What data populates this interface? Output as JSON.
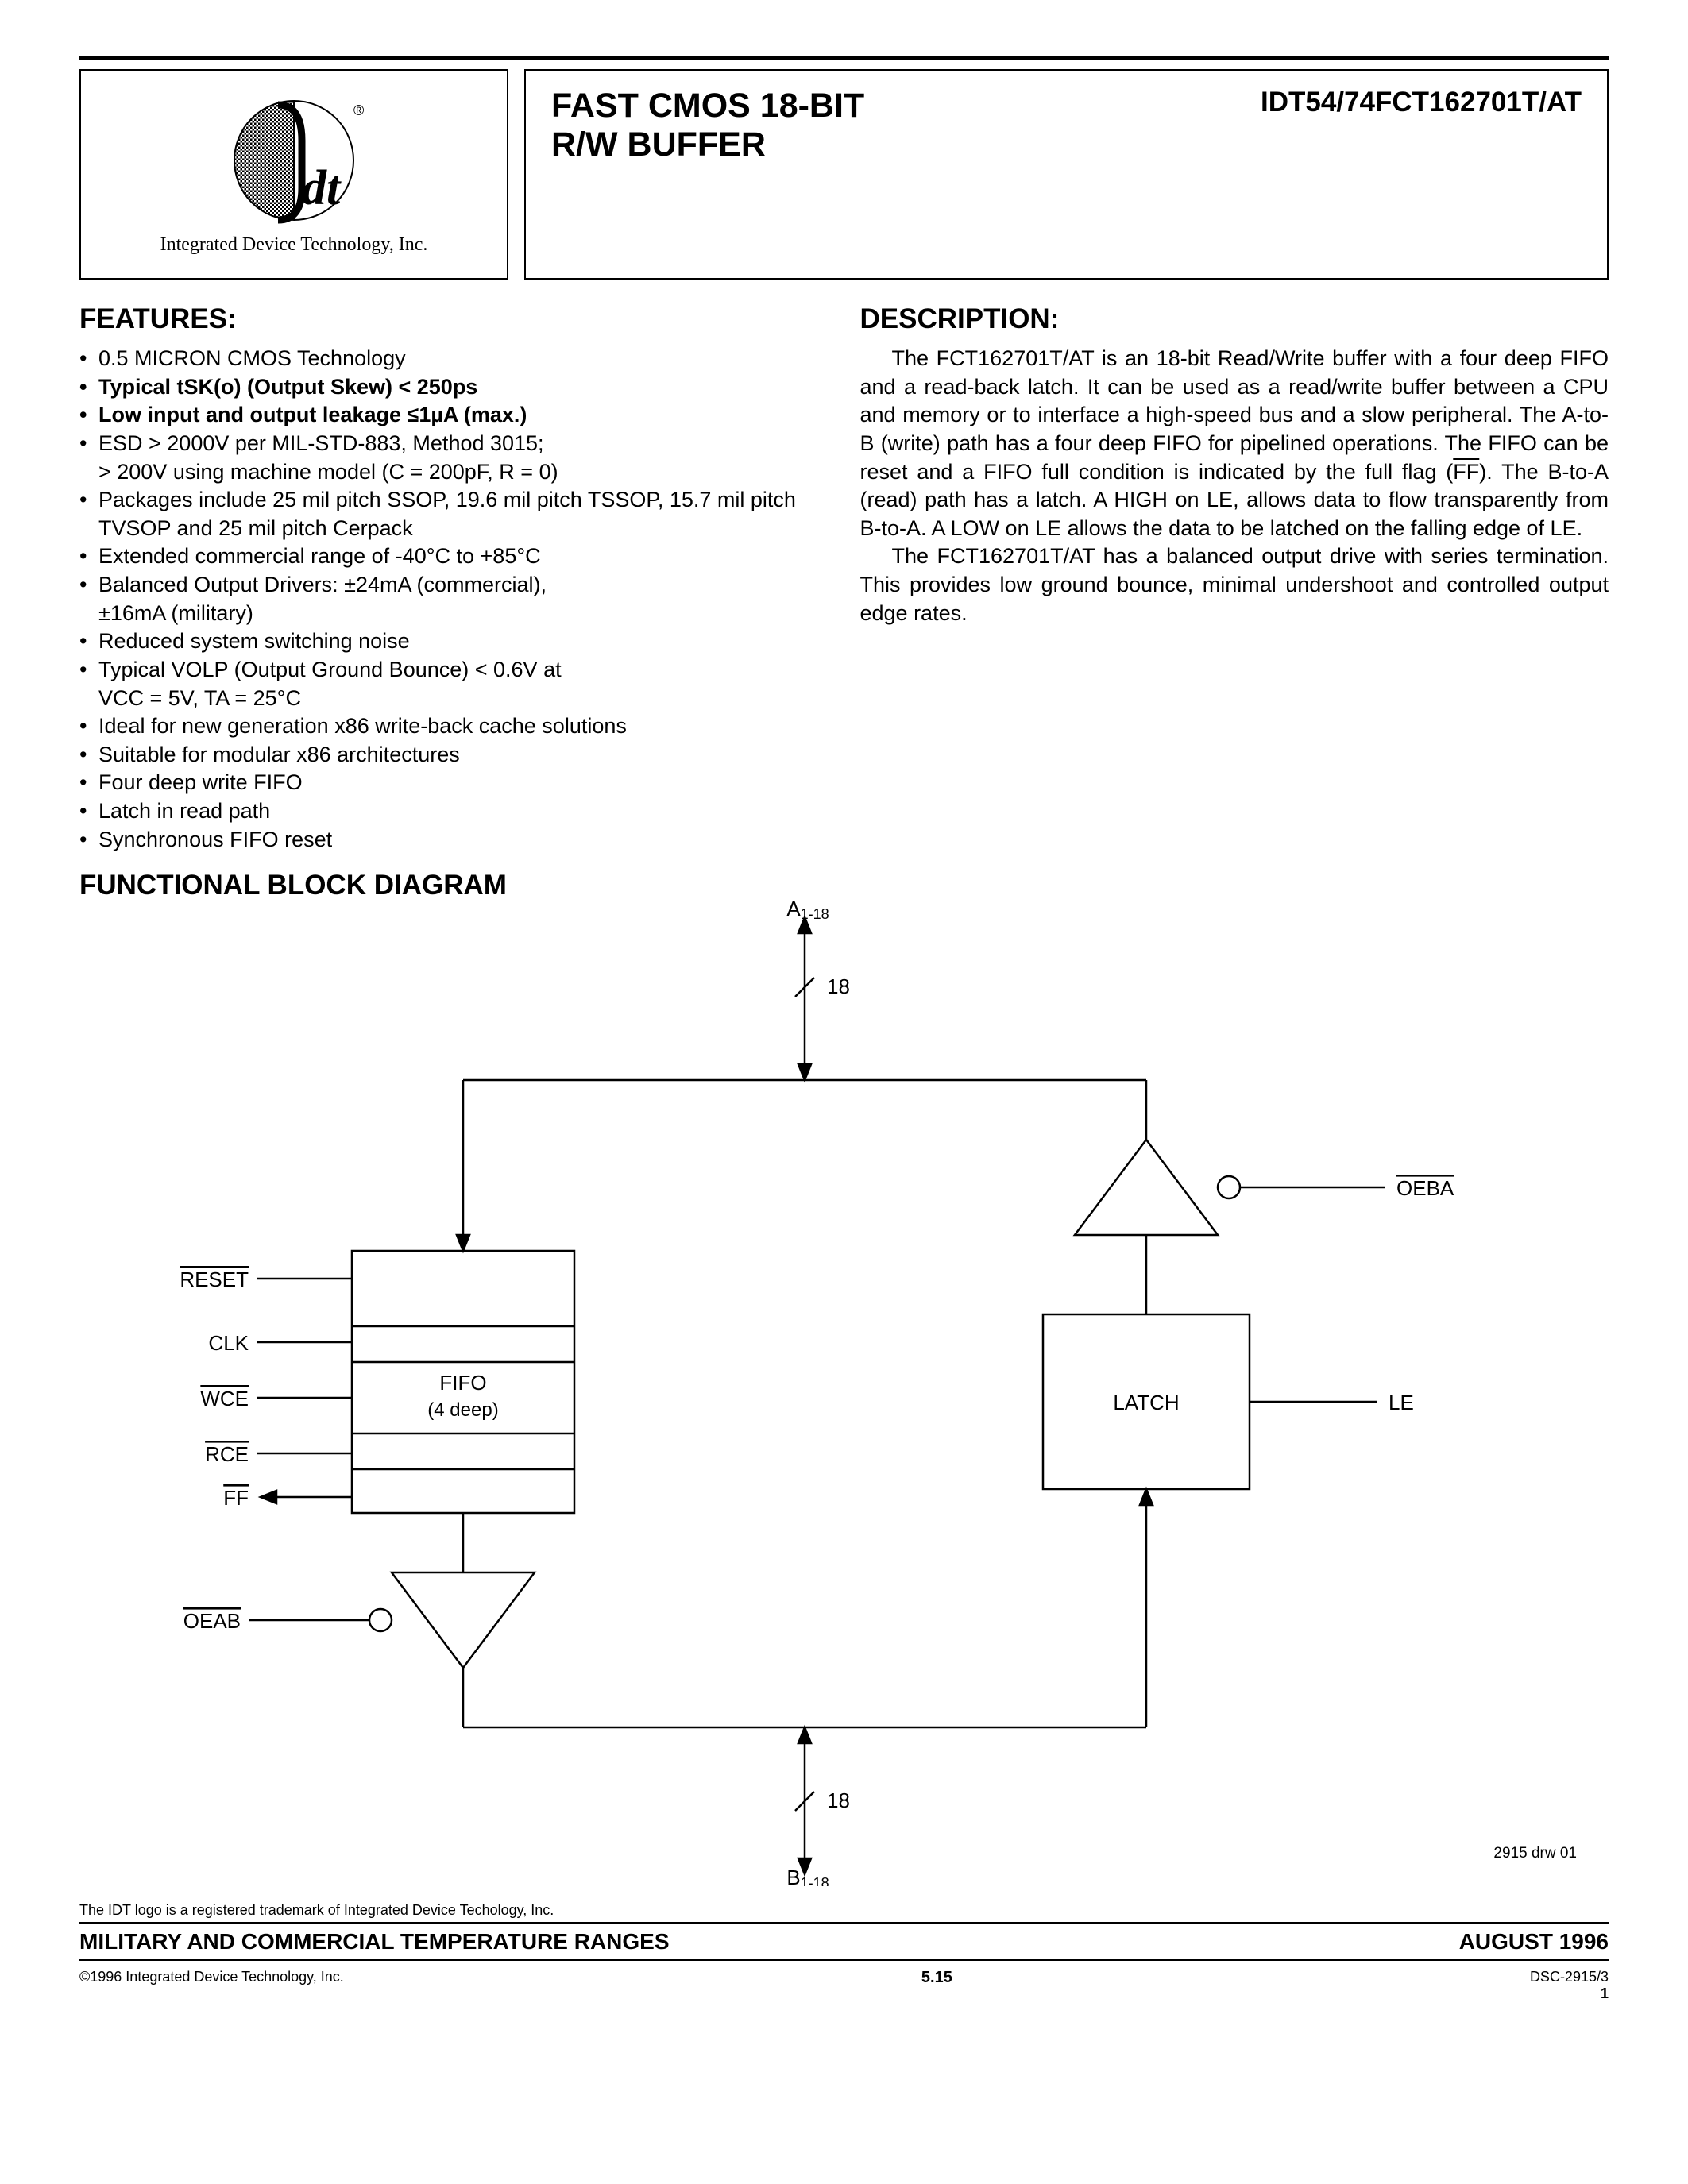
{
  "header": {
    "logo_caption": "Integrated Device Technology, Inc.",
    "title_line1": "FAST CMOS 18-BIT",
    "title_line2": "R/W BUFFER",
    "part_number": "IDT54/74FCT162701T/AT"
  },
  "features": {
    "heading": "FEATURES:",
    "items": [
      {
        "text": "0.5 MICRON CMOS Technology",
        "bold": false
      },
      {
        "text": "Typical tSK(o)  (Output Skew) < 250ps",
        "bold": true
      },
      {
        "text": "Low input and output leakage ≤1µA (max.)",
        "bold": true
      },
      {
        "text": "ESD > 2000V per MIL-STD-883, Method 3015;",
        "bold": false
      },
      {
        "text": "> 200V using machine model (C = 200pF, R = 0)",
        "bold": false,
        "cont": true
      },
      {
        "text": "Packages include 25 mil pitch SSOP, 19.6 mil pitch TSSOP, 15.7 mil pitch TVSOP and 25 mil pitch Cerpack",
        "bold": false
      },
      {
        "text": "Extended commercial range of -40°C to +85°C",
        "bold": false
      },
      {
        "text": "Balanced Output Drivers:          ±24mA (commercial),",
        "bold": false
      },
      {
        "text": "                                                   ±16mA (military)",
        "bold": false,
        "cont": true
      },
      {
        "text": "Reduced system switching noise",
        "bold": false
      },
      {
        "text": "Typical VOLP (Output Ground Bounce) < 0.6V at",
        "bold": false
      },
      {
        "text": "VCC = 5V, TA = 25°C",
        "bold": false,
        "cont": true
      },
      {
        "text": "Ideal for new generation x86 write-back cache solutions",
        "bold": false
      },
      {
        "text": "Suitable for modular x86 architectures",
        "bold": false
      },
      {
        "text": "Four deep write FIFO",
        "bold": false
      },
      {
        "text": "Latch in read path",
        "bold": false
      },
      {
        "text": "Synchronous FIFO reset",
        "bold": false
      }
    ]
  },
  "description": {
    "heading": "DESCRIPTION:",
    "para1": "The FCT162701T/AT is an 18-bit Read/Write buffer with a four deep FIFO and a read-back latch.  It can be used as a read/write buffer between a CPU and memory or to interface a high-speed bus and a slow peripheral.  The A-to-B (write) path has a four deep FIFO for pipelined operations. The FIFO can be reset and a FIFO full condition is indicated by the full flag (",
    "para1_ff": "FF",
    "para1_end": ").  The B-to-A (read) path has a latch.  A HIGH on LE, allows data to flow transparently from B-to-A.  A LOW on LE allows the data to be latched on the falling edge of LE.",
    "para2": "The FCT162701T/AT has a balanced output drive with series termination.  This provides low ground bounce, minimal undershoot and controlled output edge rates."
  },
  "diagram": {
    "heading": "FUNCTIONAL BLOCK DIAGRAM",
    "labels": {
      "top": "A1-18",
      "bottom": "B1-18",
      "bus_top": "18",
      "bus_bottom": "18",
      "fifo_title": "FIFO",
      "fifo_sub": "(4 deep)",
      "latch_title": "LATCH",
      "reset": "RESET",
      "clk": "CLK",
      "wce": "WCE",
      "rce": "RCE",
      "ff": "FF",
      "oeab": "OEAB",
      "oeba": "OEBA",
      "le": "LE",
      "drw": "2915 drw 01"
    }
  },
  "footer": {
    "trademark": "The IDT logo is a registered trademark of Integrated Device Techology, Inc.",
    "left": "MILITARY AND COMMERCIAL TEMPERATURE RANGES",
    "right": "AUGUST 1996",
    "copyright": "©1996 Integrated Device Technology, Inc.",
    "section": "5.15",
    "doc": "DSC-2915/3",
    "page": "1"
  }
}
